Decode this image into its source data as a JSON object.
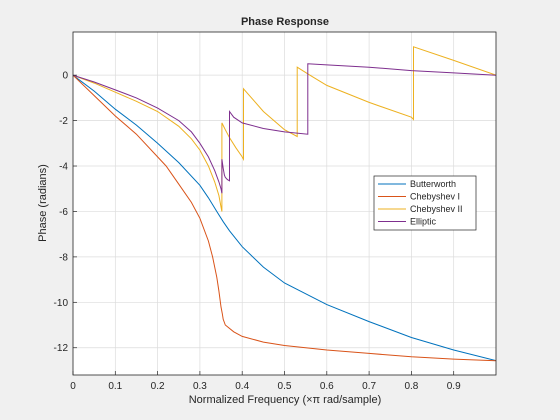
{
  "chart_data": {
    "type": "line",
    "title": "Phase Response",
    "xlabel": "Normalized Frequency (×π rad/sample)",
    "ylabel": "Phase (radians)",
    "xlim": [
      0,
      1
    ],
    "ylim": [
      -13.2,
      1.9
    ],
    "grid": true,
    "legend_position": "right",
    "x_ticks": [
      0,
      0.1,
      0.2,
      0.3,
      0.4,
      0.5,
      0.6,
      0.7,
      0.8,
      0.9
    ],
    "x_tick_labels": [
      "0",
      "0.1",
      "0.2",
      "0.3",
      "0.4",
      "0.5",
      "0.6",
      "0.7",
      "0.8",
      "0.9"
    ],
    "y_ticks": [
      0,
      -2,
      -4,
      -6,
      -8,
      -10,
      -12
    ],
    "y_tick_labels": [
      "0",
      "-2",
      "-4",
      "-6",
      "-8",
      "-10",
      "-12"
    ],
    "series": [
      {
        "name": "Butterworth",
        "color": "#0072bd",
        "x": [
          0,
          0.05,
          0.1,
          0.15,
          0.2,
          0.25,
          0.3,
          0.32,
          0.34,
          0.355,
          0.37,
          0.4,
          0.45,
          0.5,
          0.6,
          0.7,
          0.8,
          0.9,
          1.0
        ],
        "y": [
          0,
          -0.7,
          -1.5,
          -2.2,
          -3.0,
          -3.85,
          -4.85,
          -5.4,
          -6.0,
          -6.45,
          -6.85,
          -7.55,
          -8.45,
          -9.15,
          -10.1,
          -10.85,
          -11.55,
          -12.1,
          -12.57
        ]
      },
      {
        "name": "Chebyshev I",
        "color": "#d95319",
        "x": [
          0,
          0.05,
          0.1,
          0.15,
          0.2,
          0.22,
          0.25,
          0.28,
          0.3,
          0.32,
          0.33,
          0.34,
          0.345,
          0.35,
          0.353,
          0.355,
          0.36,
          0.38,
          0.4,
          0.45,
          0.5,
          0.6,
          0.7,
          0.8,
          0.9,
          1.0
        ],
        "y": [
          0,
          -0.9,
          -1.8,
          -2.6,
          -3.6,
          -4.0,
          -4.8,
          -5.6,
          -6.3,
          -7.3,
          -8.0,
          -8.9,
          -9.5,
          -10.2,
          -10.5,
          -10.75,
          -11.0,
          -11.3,
          -11.5,
          -11.75,
          -11.9,
          -12.1,
          -12.25,
          -12.4,
          -12.5,
          -12.57
        ]
      },
      {
        "name": "Chebyshev II",
        "color": "#edb120",
        "x": [
          0,
          0.05,
          0.1,
          0.15,
          0.2,
          0.25,
          0.28,
          0.3,
          0.32,
          0.335,
          0.345,
          0.35,
          0.352,
          0.352,
          0.36,
          0.37,
          0.385,
          0.4,
          0.403,
          0.403,
          0.45,
          0.5,
          0.53,
          0.53,
          0.56,
          0.6,
          0.7,
          0.8,
          0.805,
          0.805,
          0.9,
          1.0
        ],
        "y": [
          0,
          -0.35,
          -0.75,
          -1.15,
          -1.6,
          -2.25,
          -2.8,
          -3.3,
          -4.0,
          -4.7,
          -5.3,
          -5.8,
          -6.0,
          -2.1,
          -2.4,
          -2.75,
          -3.2,
          -3.6,
          -3.7,
          -0.6,
          -1.6,
          -2.4,
          -2.7,
          0.35,
          0.0,
          -0.45,
          -1.2,
          -1.85,
          -1.95,
          1.25,
          0.65,
          0.0
        ]
      },
      {
        "name": "Elliptic",
        "color": "#7e2f8e",
        "x": [
          0,
          0.05,
          0.1,
          0.15,
          0.2,
          0.25,
          0.28,
          0.3,
          0.32,
          0.335,
          0.345,
          0.35,
          0.352,
          0.352,
          0.355,
          0.358,
          0.36,
          0.365,
          0.37,
          0.37,
          0.38,
          0.4,
          0.45,
          0.5,
          0.555,
          0.555,
          0.6,
          0.7,
          0.8,
          0.9,
          1.0
        ],
        "y": [
          0,
          -0.3,
          -0.65,
          -1.0,
          -1.45,
          -2.0,
          -2.5,
          -3.0,
          -3.6,
          -4.2,
          -4.7,
          -5.0,
          -5.2,
          -3.7,
          -4.1,
          -4.4,
          -4.5,
          -4.6,
          -4.65,
          -1.6,
          -1.85,
          -2.1,
          -2.35,
          -2.5,
          -2.6,
          0.5,
          0.45,
          0.35,
          0.2,
          0.1,
          0.0
        ]
      }
    ]
  }
}
